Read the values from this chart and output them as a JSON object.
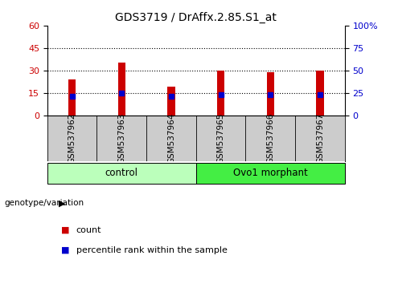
{
  "title": "GDS3719 / DrAffx.2.85.S1_at",
  "samples": [
    "GSM537962",
    "GSM537963",
    "GSM537964",
    "GSM537965",
    "GSM537966",
    "GSM537967"
  ],
  "counts": [
    24,
    35,
    19,
    30,
    29,
    30
  ],
  "percentile_ranks": [
    13,
    15,
    13,
    14,
    14,
    14
  ],
  "left_ylim": [
    0,
    60
  ],
  "right_ylim": [
    0,
    100
  ],
  "left_yticks": [
    0,
    15,
    30,
    45,
    60
  ],
  "right_yticks": [
    0,
    25,
    50,
    75,
    100
  ],
  "right_yticklabels": [
    "0",
    "25",
    "50",
    "75",
    "100%"
  ],
  "bar_color": "#cc0000",
  "marker_color": "#0000cc",
  "groups": [
    {
      "label": "control",
      "indices": [
        0,
        1,
        2
      ],
      "color": "#bbffbb"
    },
    {
      "label": "Ovo1 morphant",
      "indices": [
        3,
        4,
        5
      ],
      "color": "#44ee44"
    }
  ],
  "group_label": "genotype/variation",
  "legend_count_label": "count",
  "legend_percentile_label": "percentile rank within the sample",
  "bar_width": 0.15,
  "background_color": "#ffffff",
  "tick_area_color": "#cccccc",
  "gridline_ticks": [
    15,
    30,
    45
  ],
  "dotline_color": "#000000"
}
